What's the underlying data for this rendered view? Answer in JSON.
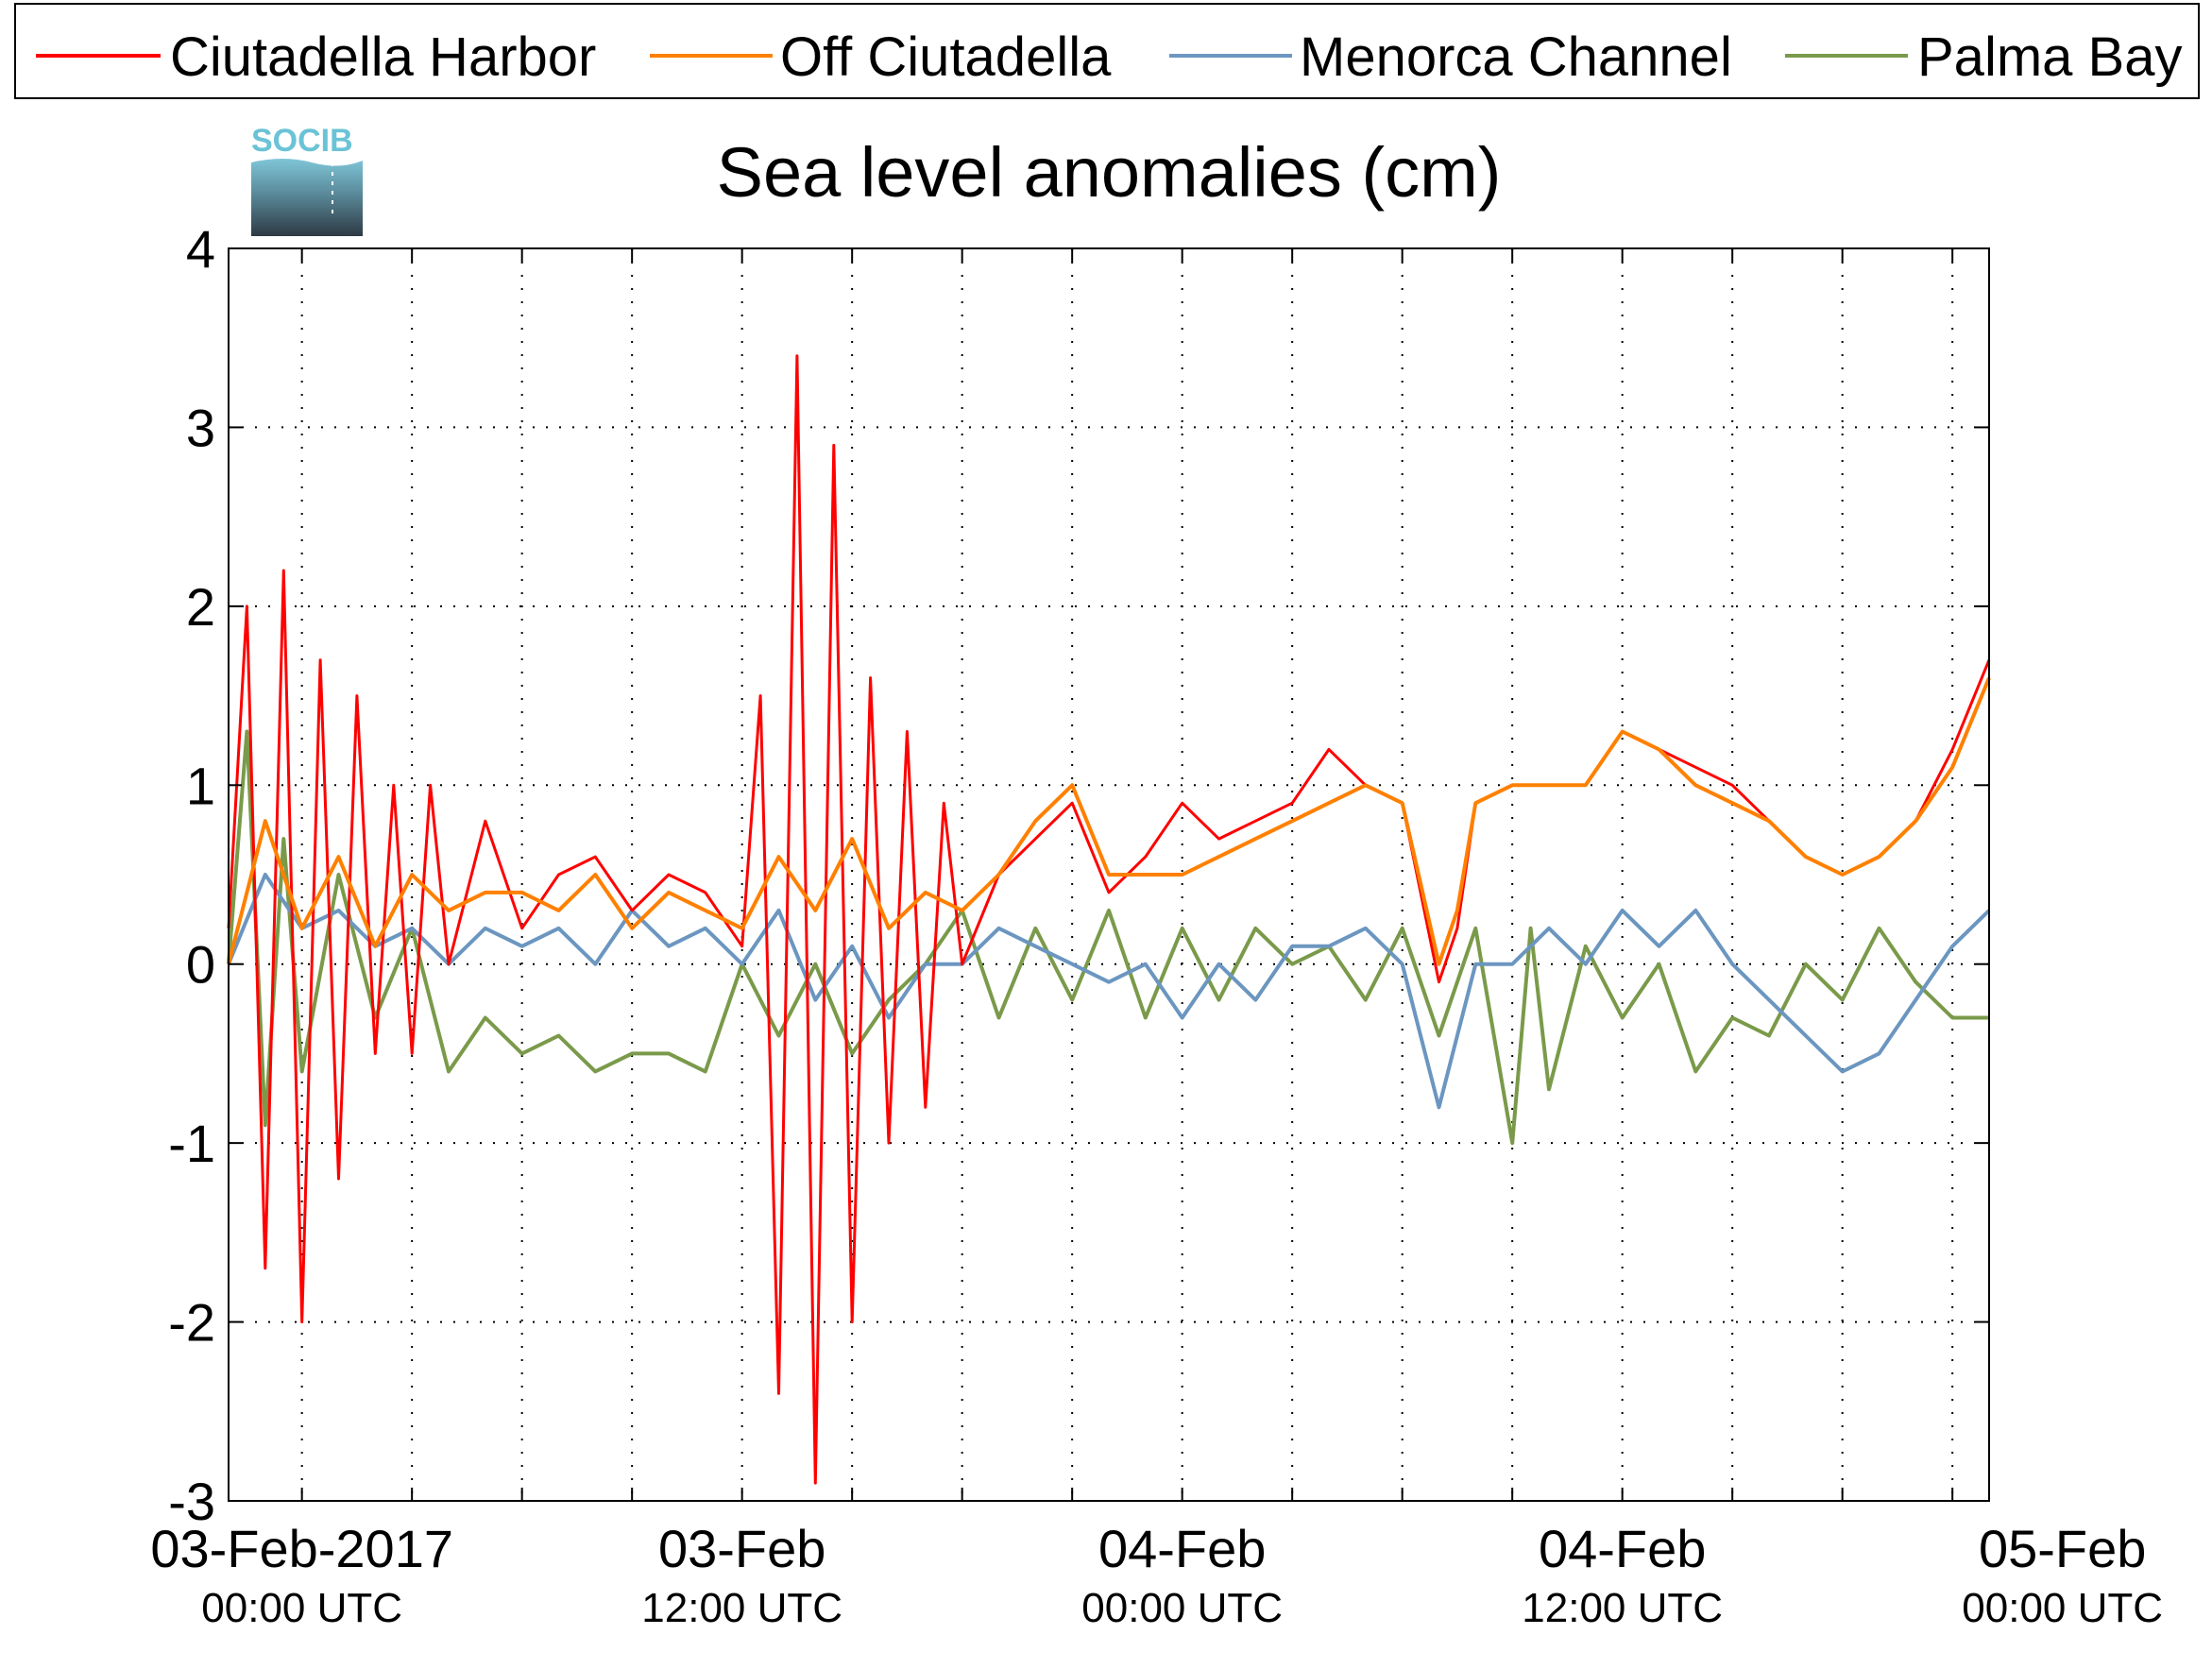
{
  "chart_data": {
    "type": "line",
    "title": "Sea level anomalies (cm)",
    "xlabel": "",
    "ylabel": "",
    "ylim": [
      -3,
      4
    ],
    "yticks": [
      -3,
      -2,
      -1,
      0,
      1,
      2,
      3,
      4
    ],
    "ytick_labels": [
      "-3",
      "-2",
      "-1",
      "0",
      "1",
      "2",
      "3",
      "4"
    ],
    "xlim_hours": [
      -2,
      46
    ],
    "grid": true,
    "legend_position": "top",
    "x_tick_labels": [
      {
        "hour": 0,
        "date": "03-Feb-2017",
        "time": "00:00 UTC"
      },
      {
        "hour": 12,
        "date": "03-Feb",
        "time": "12:00 UTC"
      },
      {
        "hour": 24,
        "date": "04-Feb",
        "time": "00:00 UTC"
      },
      {
        "hour": 36,
        "date": "04-Feb",
        "time": "12:00 UTC"
      },
      {
        "hour": 48,
        "date": "05-Feb",
        "time": "00:00 UTC"
      }
    ],
    "series": [
      {
        "name": "Ciutadella Harbor",
        "color": "#ff0000",
        "x": [
          -2,
          -1.5,
          -1,
          -0.5,
          0,
          0.5,
          1,
          1.5,
          2,
          2.5,
          3,
          3.5,
          4,
          5,
          6,
          7,
          8,
          9,
          10,
          11,
          12,
          12.5,
          13,
          13.5,
          14,
          14.5,
          15,
          15.5,
          16,
          16.5,
          17,
          17.5,
          18,
          19,
          20,
          21,
          22,
          23,
          24,
          25,
          26,
          27,
          28,
          29,
          30,
          31,
          31.5,
          32,
          33,
          34,
          35,
          36,
          37,
          38,
          39,
          40,
          41,
          42,
          43,
          44,
          45,
          46
        ],
        "y": [
          0.2,
          2.0,
          -1.7,
          2.2,
          -2.0,
          1.7,
          -1.2,
          1.5,
          -0.5,
          1.0,
          -0.5,
          1.0,
          0.0,
          0.8,
          0.2,
          0.5,
          0.6,
          0.3,
          0.5,
          0.4,
          0.1,
          1.5,
          -2.4,
          3.4,
          -2.9,
          2.9,
          -2.0,
          1.6,
          -1.0,
          1.3,
          -0.8,
          0.9,
          0.0,
          0.5,
          0.7,
          0.9,
          0.4,
          0.6,
          0.9,
          0.7,
          0.8,
          0.9,
          1.2,
          1.0,
          0.9,
          -0.1,
          0.2,
          0.9,
          1.0,
          1.0,
          1.0,
          1.3,
          1.2,
          1.1,
          1.0,
          0.8,
          0.6,
          0.5,
          0.6,
          0.8,
          1.2,
          1.7
        ]
      },
      {
        "name": "Off Ciutadella",
        "color": "#ff8000",
        "x": [
          -2,
          -1,
          0,
          1,
          2,
          3,
          4,
          5,
          6,
          7,
          8,
          9,
          10,
          11,
          12,
          13,
          14,
          15,
          16,
          17,
          18,
          19,
          20,
          21,
          22,
          23,
          24,
          25,
          26,
          27,
          28,
          29,
          30,
          31,
          31.5,
          32,
          33,
          34,
          35,
          36,
          37,
          38,
          39,
          40,
          41,
          42,
          43,
          44,
          45,
          46
        ],
        "y": [
          0.0,
          0.8,
          0.2,
          0.6,
          0.1,
          0.5,
          0.3,
          0.4,
          0.4,
          0.3,
          0.5,
          0.2,
          0.4,
          0.3,
          0.2,
          0.6,
          0.3,
          0.7,
          0.2,
          0.4,
          0.3,
          0.5,
          0.8,
          1.0,
          0.5,
          0.5,
          0.5,
          0.6,
          0.7,
          0.8,
          0.9,
          1.0,
          0.9,
          0.0,
          0.3,
          0.9,
          1.0,
          1.0,
          1.0,
          1.3,
          1.2,
          1.0,
          0.9,
          0.8,
          0.6,
          0.5,
          0.6,
          0.8,
          1.1,
          1.6
        ]
      },
      {
        "name": "Menorca Channel",
        "color": "#6b96c0",
        "x": [
          -2,
          -1,
          0,
          1,
          2,
          3,
          4,
          5,
          6,
          7,
          8,
          9,
          10,
          11,
          12,
          13,
          14,
          15,
          16,
          17,
          18,
          19,
          20,
          21,
          22,
          23,
          24,
          25,
          26,
          27,
          28,
          29,
          30,
          31,
          32,
          33,
          34,
          35,
          36,
          37,
          38,
          39,
          40,
          41,
          42,
          43,
          44,
          45,
          46
        ],
        "y": [
          0.0,
          0.5,
          0.2,
          0.3,
          0.1,
          0.2,
          0.0,
          0.2,
          0.1,
          0.2,
          0.0,
          0.3,
          0.1,
          0.2,
          0.0,
          0.3,
          -0.2,
          0.1,
          -0.3,
          0.0,
          0.0,
          0.2,
          0.1,
          0.0,
          -0.1,
          0.0,
          -0.3,
          0.0,
          -0.2,
          0.1,
          0.1,
          0.2,
          0.0,
          -0.8,
          0.0,
          0.0,
          0.2,
          0.0,
          0.3,
          0.1,
          0.3,
          0.0,
          -0.2,
          -0.4,
          -0.6,
          -0.5,
          -0.2,
          0.1,
          0.3
        ]
      },
      {
        "name": "Palma Bay",
        "color": "#7a9a4a",
        "x": [
          -2,
          -1.5,
          -1,
          -0.5,
          0,
          1,
          2,
          3,
          4,
          5,
          6,
          7,
          8,
          9,
          10,
          11,
          12,
          13,
          14,
          15,
          16,
          17,
          18,
          19,
          20,
          21,
          22,
          23,
          24,
          25,
          26,
          27,
          28,
          29,
          30,
          31,
          32,
          33,
          33.5,
          34,
          35,
          36,
          37,
          38,
          39,
          40,
          41,
          42,
          43,
          44,
          45,
          46
        ],
        "y": [
          0.0,
          1.3,
          -0.9,
          0.7,
          -0.6,
          0.5,
          -0.3,
          0.2,
          -0.6,
          -0.3,
          -0.5,
          -0.4,
          -0.6,
          -0.5,
          -0.5,
          -0.6,
          0.0,
          -0.4,
          0.0,
          -0.5,
          -0.2,
          0.0,
          0.3,
          -0.3,
          0.2,
          -0.2,
          0.3,
          -0.3,
          0.2,
          -0.2,
          0.2,
          0.0,
          0.1,
          -0.2,
          0.2,
          -0.4,
          0.2,
          -1.0,
          0.2,
          -0.7,
          0.1,
          -0.3,
          0.0,
          -0.6,
          -0.3,
          -0.4,
          0.0,
          -0.2,
          0.2,
          -0.1,
          -0.3,
          -0.3
        ]
      }
    ]
  },
  "logo": {
    "text": "SOCIB"
  }
}
